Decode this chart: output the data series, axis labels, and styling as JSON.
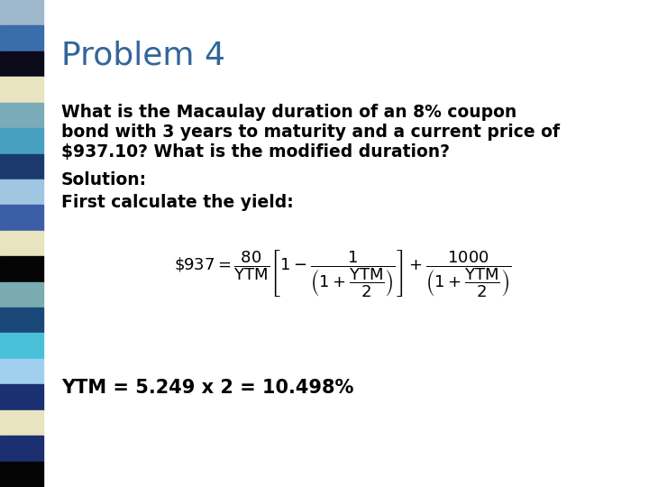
{
  "title": "Problem 4",
  "title_color": "#336699",
  "title_fontsize": 26,
  "body_text_1a": "What is the Macaulay duration of an 8% coupon",
  "body_text_1b": "bond with 3 years to maturity and a current price of",
  "body_text_1c": "$937.10? What is the modified duration?",
  "body_text_2": "Solution:",
  "body_text_3": "First calculate the yield:",
  "ytm_result": "YTM = 5.249 x 2 = 10.498%",
  "body_fontsize": 13.5,
  "ytm_fontsize": 15,
  "body_color": "#000000",
  "background_color": "#FFFFFF",
  "strip_colors": [
    "#A0B8CC",
    "#3A6EAA",
    "#0A0A1A",
    "#E8E4C0",
    "#7AABB8",
    "#48A0C0",
    "#1A3A6E",
    "#A0C5E0",
    "#3A5EA8",
    "#E8E4C0",
    "#050505",
    "#7AABB0",
    "#1A4878",
    "#48C0D8",
    "#A0D0EE",
    "#1A3070",
    "#E8E4C0",
    "#1A3070",
    "#050505"
  ],
  "formula": "$\\$937 = \\dfrac{80}{\\mathrm{YTM}}\\left[1 - \\dfrac{1}{\\left(1+\\dfrac{\\mathrm{YTM}}{2}\\right)}\\right]+ \\dfrac{1000}{\\left(1+\\dfrac{\\mathrm{YTM}}{2}\\right)}$"
}
